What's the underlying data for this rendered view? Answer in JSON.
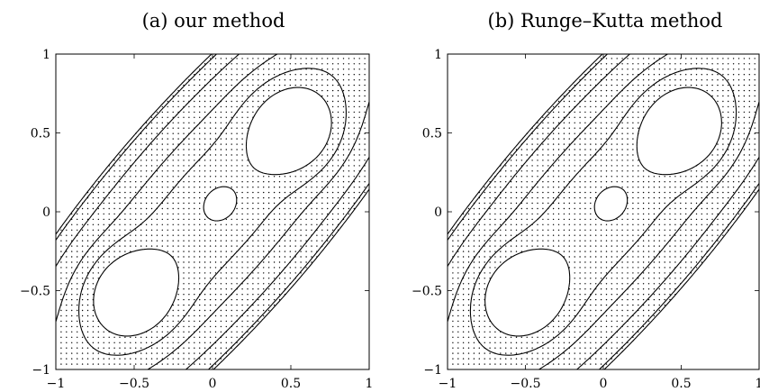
{
  "chart_data": [
    {
      "type": "scatter",
      "title": "(a) our method",
      "xlim": [
        -1,
        1
      ],
      "ylim": [
        -1,
        1
      ],
      "xticks": [
        -1,
        -0.5,
        0,
        0.5,
        1
      ],
      "yticks": [
        -1,
        -0.5,
        0,
        0.5,
        1
      ],
      "xtick_labels": [
        "−1",
        "−0.5",
        "0",
        "0.5",
        "1"
      ],
      "ytick_labels": [
        "−1",
        "−0.5",
        "0",
        "0.5",
        "1"
      ],
      "grid": false,
      "legend": "none",
      "contour_levels": [
        0.1,
        0.3,
        0.5,
        0.75,
        1.0
      ],
      "shear": 0.75,
      "lobe_center": [
        0.53,
        0.53
      ],
      "lobe_level": 0.95
    },
    {
      "type": "scatter",
      "title": "(b) Runge–Kutta method",
      "xlim": [
        -1,
        1
      ],
      "ylim": [
        -1,
        1
      ],
      "xticks": [
        -1,
        -0.5,
        0,
        0.5,
        1
      ],
      "yticks": [
        -1,
        -0.5,
        0,
        0.5,
        1
      ],
      "xtick_labels": [
        "−1",
        "−0.5",
        "0",
        "0.5",
        "1"
      ],
      "ytick_labels": [
        "−1",
        "−0.5",
        "0",
        "0.5",
        "1"
      ],
      "grid": false,
      "legend": "none",
      "contour_levels": [
        0.1,
        0.3,
        0.5,
        0.75,
        1.0
      ],
      "shear": 0.75,
      "lobe_center": [
        0.53,
        0.53
      ],
      "lobe_level": 0.95
    }
  ]
}
